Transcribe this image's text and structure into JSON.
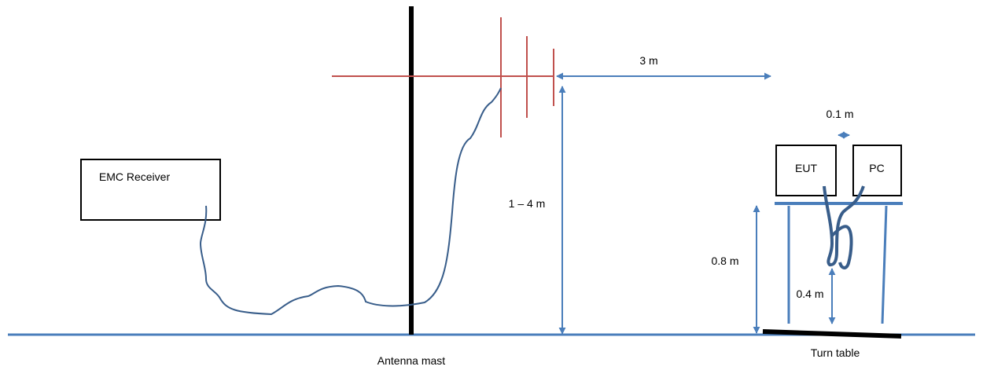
{
  "labels": {
    "receiver": "EMC Receiver",
    "distance": "3 m",
    "height_range": "1 – 4 m",
    "spacing": "0.1 m",
    "eut": "EUT",
    "pc": "PC",
    "table_height": "0.8 m",
    "cable_height": "0.4 m",
    "antenna_mast": "Antenna mast",
    "turn_table": "Turn table"
  },
  "colors": {
    "ground": "#4a7ebb",
    "mast": "#000000",
    "antenna": "#c0504d",
    "dimension": "#4a7ebb",
    "cable": "#385d8a",
    "box_border": "#000000"
  }
}
